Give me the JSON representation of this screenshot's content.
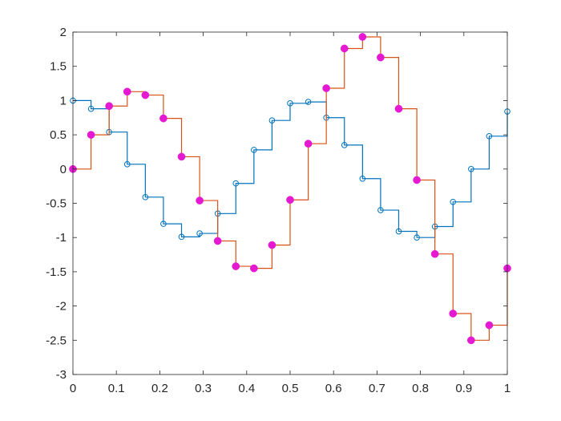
{
  "chart_data": {
    "type": "line",
    "title": "",
    "xlabel": "",
    "ylabel": "",
    "xlim": [
      0,
      1
    ],
    "ylim": [
      -3,
      2
    ],
    "grid": false,
    "legend": "none",
    "x_ticks": [
      "0",
      "0.1",
      "0.2",
      "0.3",
      "0.4",
      "0.5",
      "0.6",
      "0.7",
      "0.8",
      "0.9",
      "1"
    ],
    "y_ticks": [
      "2",
      "1.5",
      "1",
      "0.5",
      "0",
      "-0.5",
      "-1",
      "-1.5",
      "-2",
      "-2.5",
      "-3"
    ],
    "x_tick_values": [
      0,
      0.1,
      0.2,
      0.3,
      0.4,
      0.5,
      0.6,
      0.7,
      0.8,
      0.9,
      1
    ],
    "y_tick_values": [
      2,
      1.5,
      1,
      0.5,
      0,
      -0.5,
      -1,
      -1.5,
      -2,
      -2.5,
      -3
    ],
    "x": [
      0,
      0.0417,
      0.0833,
      0.125,
      0.1667,
      0.2083,
      0.25,
      0.2917,
      0.3333,
      0.375,
      0.4167,
      0.4583,
      0.5,
      0.5417,
      0.5833,
      0.625,
      0.6667,
      0.7083,
      0.75,
      0.7917,
      0.8333,
      0.875,
      0.9167,
      0.9583,
      1
    ],
    "series": [
      {
        "style": "stairs",
        "marker": "open-circle",
        "color": "#0072BD",
        "values": [
          1.0,
          0.88,
          0.54,
          0.07,
          -0.41,
          -0.8,
          -0.99,
          -0.94,
          -0.65,
          -0.21,
          0.28,
          0.71,
          0.96,
          0.98,
          0.75,
          0.35,
          -0.14,
          -0.6,
          -0.91,
          -1.0,
          -0.84,
          -0.48,
          0.0,
          0.48,
          0.84
        ]
      },
      {
        "style": "stairs",
        "marker": "filled-circle",
        "color": "#D95319",
        "marker_color": "#E619D3",
        "values": [
          0.0,
          0.5,
          0.92,
          1.13,
          1.08,
          0.74,
          0.18,
          -0.46,
          -1.05,
          -1.42,
          -1.45,
          -1.11,
          -0.45,
          0.37,
          1.18,
          1.76,
          1.93,
          1.63,
          0.88,
          -0.16,
          -1.24,
          -2.11,
          -2.5,
          -2.28,
          -1.45
        ]
      }
    ]
  }
}
